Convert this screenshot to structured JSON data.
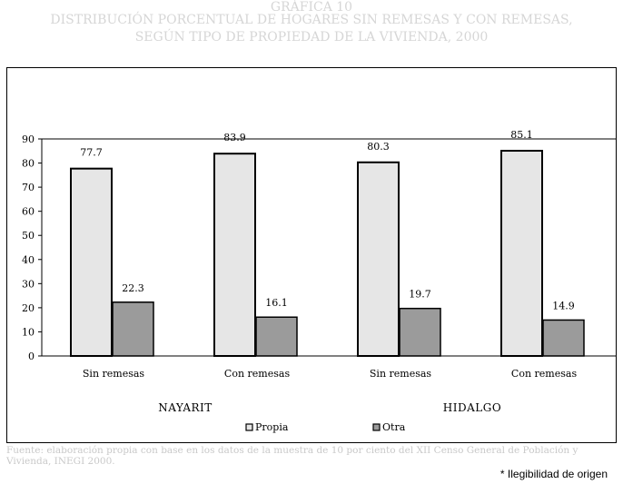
{
  "title_lines": [
    "GRÁFICA 10",
    "DISTRIBUCIÓN PORCENTUAL DE HOGARES SIN REMESAS Y CON REMESAS,",
    "SEGÚN TIPO DE PROPIEDAD DE LA VIVIENDA, 2000"
  ],
  "source": "Fuente: elaboración propia con base en los datos de la muestra de 10 por ciento del XII Censo General de Población y Vivienda, INEGI 2000.",
  "note": "* Ilegibilidad de origen",
  "colors": {
    "propia": "#e6e6e6",
    "otra": "#9b9b9b",
    "title": "#d6d6d6",
    "source": "#c9c9c9"
  },
  "chart_data": {
    "type": "bar",
    "categories": [
      "Sin remesas",
      "Con remesas",
      "Sin remesas",
      "Con remesas"
    ],
    "groups": [
      "NAYARIT",
      "HIDALGO"
    ],
    "series": [
      {
        "name": "Propia",
        "values": [
          77.7,
          83.9,
          80.3,
          85.1
        ]
      },
      {
        "name": "Otra",
        "values": [
          22.3,
          16.1,
          19.7,
          14.9
        ]
      }
    ],
    "ylim": [
      0,
      90
    ],
    "yticks": [
      0,
      10,
      20,
      30,
      40,
      50,
      60,
      70,
      80,
      90
    ],
    "legend_position": "bottom",
    "grid": false
  }
}
